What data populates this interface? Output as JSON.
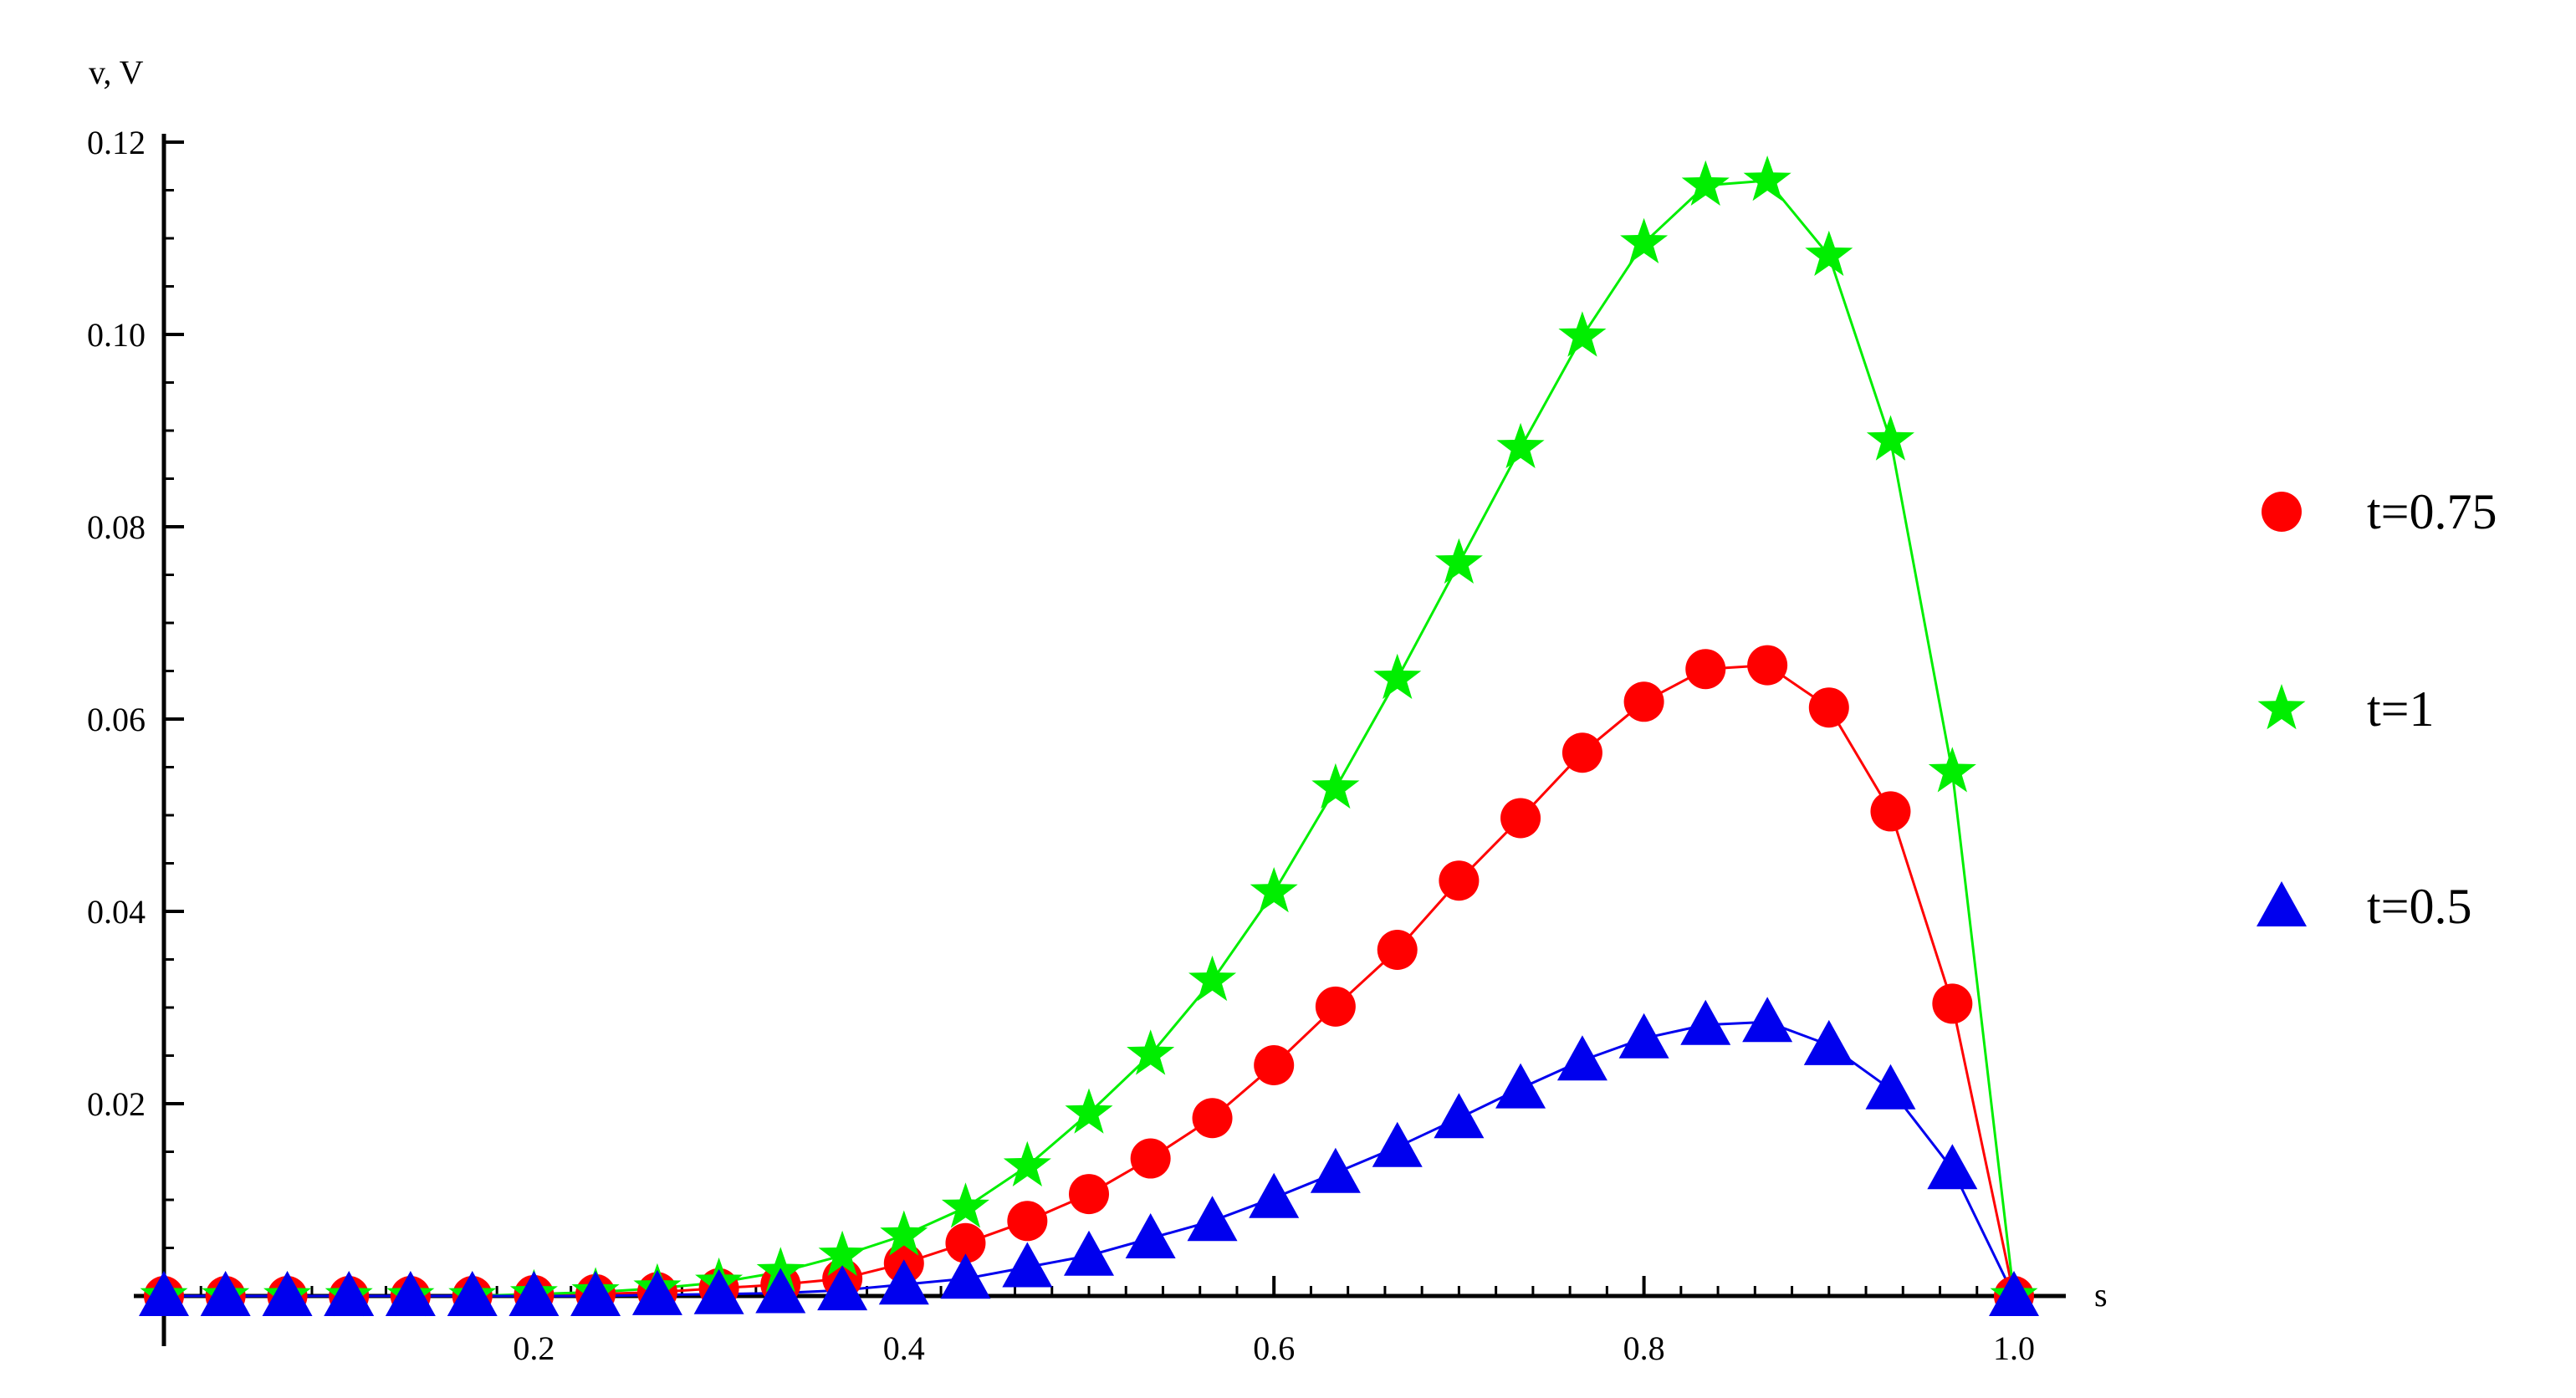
{
  "chart_data": {
    "type": "line",
    "title": "",
    "xlabel": "s",
    "ylabel": "v, V",
    "xlim": [
      0,
      1.0
    ],
    "ylim": [
      0,
      0.12
    ],
    "grid": false,
    "legend_position": "right",
    "x_ticks": [
      0.2,
      0.4,
      0.6,
      0.8,
      1.0
    ],
    "x_tick_labels": [
      "0.2",
      "0.4",
      "0.6",
      "0.8",
      "1.0"
    ],
    "y_ticks": [
      0.02,
      0.04,
      0.06,
      0.08,
      0.1,
      0.12
    ],
    "y_tick_labels": [
      "0.02",
      "0.04",
      "0.06",
      "0.08",
      "0.10",
      "0.12"
    ],
    "x": [
      0,
      0.0333,
      0.0667,
      0.1,
      0.1333,
      0.1667,
      0.2,
      0.2333,
      0.2667,
      0.3,
      0.3333,
      0.3667,
      0.4,
      0.4333,
      0.4667,
      0.5,
      0.5333,
      0.5667,
      0.6,
      0.6333,
      0.6667,
      0.7,
      0.7333,
      0.7667,
      0.8,
      0.8333,
      0.8667,
      0.9,
      0.9333,
      0.9667,
      1.0
    ],
    "series": [
      {
        "name": "t=0.75",
        "marker": "circle",
        "color": "#ff0000",
        "values": [
          0,
          0,
          0,
          0,
          0,
          0,
          0.0001,
          0.0002,
          0.0004,
          0.0008,
          0.0012,
          0.0018,
          0.0034,
          0.0055,
          0.0078,
          0.0106,
          0.0143,
          0.0185,
          0.024,
          0.0301,
          0.036,
          0.0432,
          0.0497,
          0.0565,
          0.0618,
          0.0652,
          0.0656,
          0.0612,
          0.0504,
          0.0304,
          0
        ]
      },
      {
        "name": "t=1",
        "marker": "star",
        "color": "#00ee00",
        "values": [
          0,
          0,
          0,
          0,
          0,
          0,
          0.0002,
          0.0004,
          0.0008,
          0.0014,
          0.0025,
          0.0042,
          0.0063,
          0.0092,
          0.0135,
          0.019,
          0.0251,
          0.0328,
          0.042,
          0.0528,
          0.0642,
          0.0762,
          0.0882,
          0.0998,
          0.1095,
          0.1155,
          0.116,
          0.1082,
          0.089,
          0.0545,
          0
        ]
      },
      {
        "name": "t=0.5",
        "marker": "triangle",
        "color": "#0000ee",
        "values": [
          0,
          0,
          0,
          0,
          0,
          0,
          0,
          0,
          0.0001,
          0.0002,
          0.0003,
          0.0006,
          0.0012,
          0.0018,
          0.003,
          0.0042,
          0.006,
          0.0078,
          0.0102,
          0.0128,
          0.0155,
          0.0185,
          0.0216,
          0.0245,
          0.0268,
          0.0282,
          0.0285,
          0.0261,
          0.0215,
          0.0132,
          0
        ]
      }
    ],
    "legend_order": [
      "t=0.75",
      "t=1",
      "t=0.5"
    ]
  }
}
